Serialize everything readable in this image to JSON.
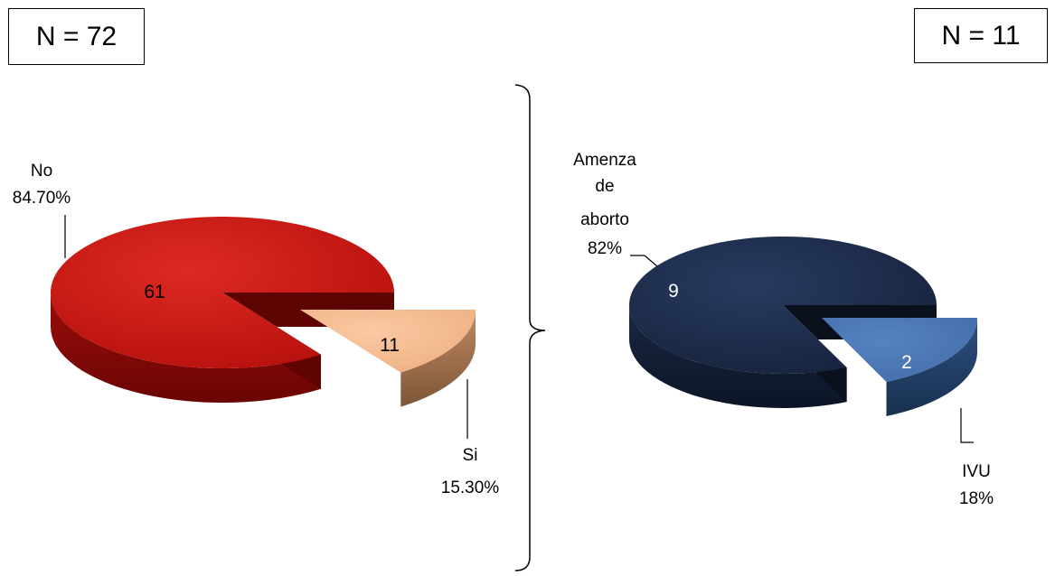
{
  "chart_data": [
    {
      "type": "pie",
      "n_label": "N = 72",
      "slices": [
        {
          "label": "No",
          "value": 61,
          "percent_label": "84.70%",
          "color": "#c41410",
          "exploded": false
        },
        {
          "label": "Si",
          "value": 11,
          "percent_label": "15.30%",
          "color": "#f6bd93",
          "exploded": true
        }
      ],
      "legend": "none"
    },
    {
      "type": "pie",
      "n_label": "N = 11",
      "slices": [
        {
          "label": "Amenza de aborto",
          "label_lines": [
            "Amenza",
            "de",
            "aborto"
          ],
          "value": 9,
          "percent_label": "82%",
          "color": "#1e2e4e",
          "exploded": false
        },
        {
          "label": "IVU",
          "value": 2,
          "percent_label": "18%",
          "color": "#4b77b5",
          "exploded": true
        }
      ],
      "legend": "none"
    }
  ]
}
